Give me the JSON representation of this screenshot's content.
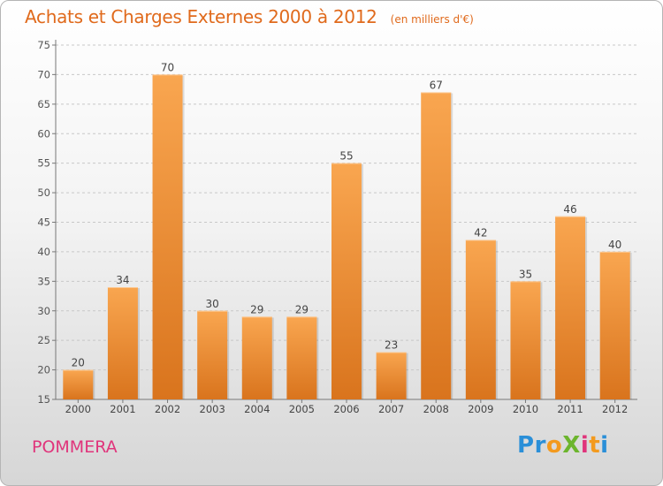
{
  "header": {
    "title": "Achats et Charges Externes 2000 à 2012",
    "unit": "(en milliers d'€)"
  },
  "footer": {
    "location": "POMMERA",
    "logo_letters": [
      {
        "char": "P",
        "color": "#2a8fd8"
      },
      {
        "char": "r",
        "color": "#2a8fd8"
      },
      {
        "char": "o",
        "color": "#f39a1e"
      },
      {
        "char": "X",
        "color": "#6cb52d"
      },
      {
        "char": "i",
        "color": "#e0347b"
      },
      {
        "char": "t",
        "color": "#f39a1e"
      },
      {
        "char": "i",
        "color": "#2a8fd8"
      }
    ]
  },
  "colors": {
    "title": "#e06a1c",
    "bar_top": "#f9a650",
    "bar_bottom": "#d9741d",
    "location": "#e0347b"
  },
  "chart_data": {
    "type": "bar",
    "title": "Achats et Charges Externes 2000 à 2012",
    "categories": [
      "2000",
      "2001",
      "2002",
      "2003",
      "2004",
      "2005",
      "2006",
      "2007",
      "2008",
      "2009",
      "2010",
      "2011",
      "2012"
    ],
    "values": [
      20,
      34,
      70,
      30,
      29,
      29,
      55,
      23,
      67,
      42,
      35,
      46,
      40
    ],
    "ylim": [
      15,
      75
    ],
    "yticks": [
      15,
      20,
      25,
      30,
      35,
      40,
      45,
      50,
      55,
      60,
      65,
      70,
      75
    ],
    "grid": true,
    "data_labels": true,
    "legend": "none"
  }
}
